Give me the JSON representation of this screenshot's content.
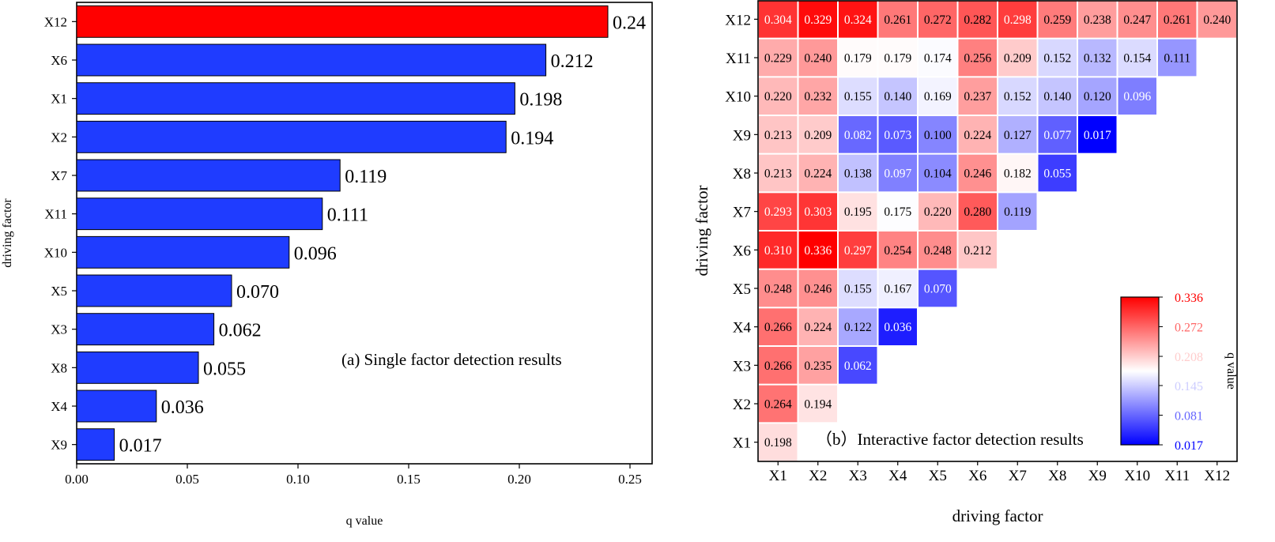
{
  "chart_data": [
    {
      "type": "bar",
      "orientation": "horizontal",
      "categories": [
        "X12",
        "X6",
        "X1",
        "X2",
        "X7",
        "X11",
        "X10",
        "X5",
        "X3",
        "X8",
        "X4",
        "X9"
      ],
      "values": [
        0.24,
        0.212,
        0.198,
        0.194,
        0.119,
        0.111,
        0.096,
        0.07,
        0.062,
        0.055,
        0.036,
        0.017
      ],
      "value_labels": [
        "0.24",
        "0.212",
        "0.198",
        "0.194",
        "0.119",
        "0.111",
        "0.096",
        "0.070",
        "0.062",
        "0.055",
        "0.036",
        "0.017"
      ],
      "highlight_color": "#ff0000",
      "bar_color": "#1f3cff",
      "xlabel": "q value",
      "ylabel": "driving factor",
      "xlim": [
        0,
        0.26
      ],
      "xticks": [
        "0.00",
        "0.05",
        "0.10",
        "0.15",
        "0.20",
        "0.25"
      ],
      "annotation": "(a) Single factor detection results"
    },
    {
      "type": "heatmap",
      "x_categories": [
        "X1",
        "X2",
        "X3",
        "X4",
        "X5",
        "X6",
        "X7",
        "X8",
        "X9",
        "X10",
        "X11",
        "X12"
      ],
      "y_categories": [
        "X12",
        "X11",
        "X10",
        "X9",
        "X8",
        "X7",
        "X6",
        "X5",
        "X4",
        "X3",
        "X2",
        "X1"
      ],
      "values": [
        [
          "0.304",
          "0.329",
          "0.324",
          "0.261",
          "0.272",
          "0.282",
          "0.298",
          "0.259",
          "0.238",
          "0.247",
          "0.261",
          "0.240"
        ],
        [
          "0.229",
          "0.240",
          "0.179",
          "0.179",
          "0.174",
          "0.256",
          "0.209",
          "0.152",
          "0.132",
          "0.154",
          "0.111"
        ],
        [
          "0.220",
          "0.232",
          "0.155",
          "0.140",
          "0.169",
          "0.237",
          "0.152",
          "0.140",
          "0.120",
          "0.096"
        ],
        [
          "0.213",
          "0.209",
          "0.082",
          "0.073",
          "0.100",
          "0.224",
          "0.127",
          "0.077",
          "0.017"
        ],
        [
          "0.213",
          "0.224",
          "0.138",
          "0.097",
          "0.104",
          "0.246",
          "0.182",
          "0.055"
        ],
        [
          "0.293",
          "0.303",
          "0.195",
          "0.175",
          "0.220",
          "0.280",
          "0.119"
        ],
        [
          "0.310",
          "0.336",
          "0.297",
          "0.254",
          "0.248",
          "0.212"
        ],
        [
          "0.248",
          "0.246",
          "0.155",
          "0.167",
          "0.070"
        ],
        [
          "0.266",
          "0.224",
          "0.122",
          "0.036"
        ],
        [
          "0.266",
          "0.235",
          "0.062"
        ],
        [
          "0.264",
          "0.194"
        ],
        [
          "0.198"
        ]
      ],
      "xlabel": "driving factor",
      "ylabel": "driving factor",
      "annotation": "（b）Interactive factor detection results",
      "colorbar": {
        "label": "q value",
        "min": 0.017,
        "max": 0.336,
        "ticks": [
          "0.336",
          "0.272",
          "0.208",
          "0.145",
          "0.081",
          "0.017"
        ],
        "colors": [
          "#0000ff",
          "#ffffff",
          "#ff0000"
        ]
      }
    }
  ]
}
